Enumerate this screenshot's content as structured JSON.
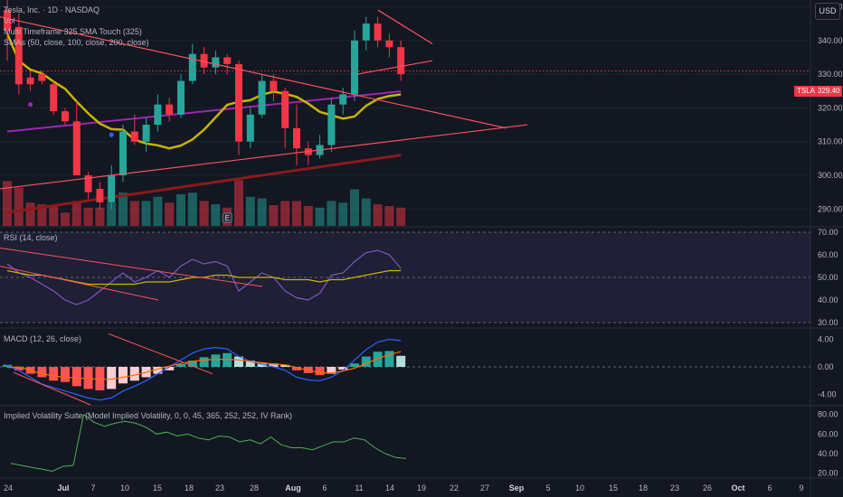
{
  "header": {
    "symbol_line": "Tesla, Inc. · 1D · NASDAQ",
    "vol": "Vol",
    "indicator1": "Multi Timeframe 325 SMA Touch (325)",
    "indicator2": "SMAs (50, close, 100, close, 200, close)"
  },
  "currency_button": "USD",
  "last_price": {
    "symbol": "TSLA",
    "value": "329.40"
  },
  "earnings_marker": "E",
  "panes": {
    "rsi_title": "RSI (14, close)",
    "macd_title": "MACD (12, 26, close)",
    "iv_title": "Implied Volatility Suite (Model Implied Volatility, 0, 0, 45, 365, 252, 252, IV Rank)"
  },
  "colors": {
    "up": "#26a69a",
    "down": "#f23645",
    "background": "#131722",
    "rsi": "#7e57c2",
    "sma50": "#c8b400",
    "sma100": "#9c27b0",
    "sma200": "#8b1a1a",
    "trend": "#f7525f"
  },
  "chart_data": [
    {
      "type": "candlestick",
      "title": "Tesla, Inc. · 1D · NASDAQ",
      "x_ticks": [
        "24",
        "Jul",
        "7",
        "10",
        "15",
        "18",
        "23",
        "28",
        "Aug",
        "6",
        "11",
        "14",
        "19",
        "22",
        "27",
        "Sep",
        "5",
        "10",
        "15",
        "18",
        "23",
        "26",
        "Oct",
        "6",
        "9"
      ],
      "y_ticks": [
        290,
        300,
        310,
        320,
        330,
        340,
        350
      ],
      "ylim": [
        285,
        352
      ],
      "last_price": 329.4,
      "candles": [
        {
          "o": 349,
          "h": 353,
          "l": 334,
          "c": 343,
          "v": 0.54
        },
        {
          "o": 344,
          "h": 348,
          "l": 324,
          "c": 327,
          "v": 0.46
        },
        {
          "o": 329,
          "h": 331,
          "l": 325,
          "c": 327,
          "v": 0.28
        },
        {
          "o": 330,
          "h": 331,
          "l": 327,
          "c": 328,
          "v": 0.26
        },
        {
          "o": 327,
          "h": 328,
          "l": 318,
          "c": 319,
          "v": 0.24
        },
        {
          "o": 319,
          "h": 320,
          "l": 315,
          "c": 316,
          "v": 0.16
        },
        {
          "o": 316,
          "h": 322,
          "l": 300,
          "c": 300,
          "v": 0.3
        },
        {
          "o": 300,
          "h": 301,
          "l": 293,
          "c": 295,
          "v": 0.22
        },
        {
          "o": 296,
          "h": 298,
          "l": 290,
          "c": 292,
          "v": 0.22
        },
        {
          "o": 292,
          "h": 303,
          "l": 290,
          "c": 300,
          "v": 0.28
        },
        {
          "o": 300,
          "h": 315,
          "l": 298,
          "c": 313,
          "v": 0.4
        },
        {
          "o": 313,
          "h": 318,
          "l": 309,
          "c": 310,
          "v": 0.3
        },
        {
          "o": 310,
          "h": 317,
          "l": 307,
          "c": 315,
          "v": 0.3
        },
        {
          "o": 315,
          "h": 324,
          "l": 313,
          "c": 321,
          "v": 0.35
        },
        {
          "o": 321,
          "h": 323,
          "l": 316,
          "c": 318,
          "v": 0.28
        },
        {
          "o": 318,
          "h": 330,
          "l": 317,
          "c": 328,
          "v": 0.38
        },
        {
          "o": 328,
          "h": 339,
          "l": 327,
          "c": 336,
          "v": 0.4
        },
        {
          "o": 336,
          "h": 338,
          "l": 330,
          "c": 332,
          "v": 0.3
        },
        {
          "o": 332,
          "h": 337,
          "l": 330,
          "c": 335,
          "v": 0.26
        },
        {
          "o": 335,
          "h": 336,
          "l": 330,
          "c": 333,
          "v": 0.22
        },
        {
          "o": 333,
          "h": 334,
          "l": 306,
          "c": 310,
          "v": 0.55
        },
        {
          "o": 310,
          "h": 320,
          "l": 308,
          "c": 318,
          "v": 0.35
        },
        {
          "o": 318,
          "h": 330,
          "l": 317,
          "c": 328,
          "v": 0.33
        },
        {
          "o": 328,
          "h": 330,
          "l": 322,
          "c": 325,
          "v": 0.25
        },
        {
          "o": 325,
          "h": 326,
          "l": 308,
          "c": 314,
          "v": 0.3
        },
        {
          "o": 314,
          "h": 321,
          "l": 303,
          "c": 308,
          "v": 0.3
        },
        {
          "o": 308,
          "h": 310,
          "l": 303,
          "c": 306,
          "v": 0.24
        },
        {
          "o": 306,
          "h": 312,
          "l": 305,
          "c": 309,
          "v": 0.22
        },
        {
          "o": 309,
          "h": 323,
          "l": 307,
          "c": 321,
          "v": 0.3
        },
        {
          "o": 321,
          "h": 326,
          "l": 318,
          "c": 324,
          "v": 0.28
        },
        {
          "o": 324,
          "h": 343,
          "l": 322,
          "c": 340,
          "v": 0.44
        },
        {
          "o": 340,
          "h": 347,
          "l": 337,
          "c": 345,
          "v": 0.33
        },
        {
          "o": 345,
          "h": 347,
          "l": 338,
          "c": 340,
          "v": 0.26
        },
        {
          "o": 340,
          "h": 342,
          "l": 335,
          "c": 338,
          "v": 0.24
        },
        {
          "o": 338,
          "h": 340,
          "l": 328,
          "c": 330,
          "v": 0.22
        }
      ]
    },
    {
      "type": "line",
      "title": "RSI (14, close)",
      "y_ticks": [
        30,
        40,
        50,
        60,
        70
      ],
      "ylim": [
        28,
        72
      ],
      "series": [
        {
          "values": [
            56,
            52,
            50,
            47,
            44,
            40,
            38,
            40,
            44,
            48,
            52,
            48,
            50,
            53,
            50,
            55,
            58,
            56,
            57,
            55,
            44,
            48,
            52,
            50,
            44,
            41,
            40,
            43,
            51,
            52,
            57,
            61,
            62,
            60,
            54
          ]
        },
        {
          "values": [
            53,
            52,
            51,
            51,
            50,
            49,
            48,
            47,
            47,
            47,
            47,
            47,
            48,
            48,
            48,
            49,
            50,
            50,
            51,
            51,
            50,
            50,
            50,
            50,
            49,
            49,
            49,
            48,
            49,
            49,
            50,
            51,
            52,
            53,
            53
          ]
        }
      ]
    },
    {
      "type": "bar",
      "title": "MACD (12, 26, close)",
      "y_ticks": [
        -4.0,
        0.0,
        4.0
      ],
      "ylim": [
        -5.5,
        5.5
      ],
      "histogram": [
        0.3,
        -0.5,
        -1.0,
        -1.5,
        -2.0,
        -2.2,
        -2.8,
        -3.2,
        -3.4,
        -3.2,
        -2.4,
        -2.0,
        -1.5,
        -1.0,
        -0.5,
        0.4,
        0.9,
        1.4,
        1.8,
        2.0,
        1.5,
        0.9,
        0.6,
        0.5,
        0.3,
        -0.5,
        -0.9,
        -1.2,
        -1.0,
        -0.4,
        0.5,
        1.5,
        2.2,
        2.3,
        1.6
      ],
      "series": [
        {
          "values": [
            0.2,
            -0.5,
            -1.5,
            -2.5,
            -3.0,
            -3.5,
            -4.0,
            -4.5,
            -4.8,
            -4.5,
            -3.5,
            -2.8,
            -2.0,
            -1.0,
            0.0,
            1.0,
            2.0,
            2.6,
            2.8,
            2.6,
            1.5,
            0.8,
            0.4,
            0.0,
            -0.5,
            -1.5,
            -1.9,
            -2.0,
            -1.5,
            -0.5,
            1.0,
            2.5,
            3.6,
            4.0,
            3.8
          ]
        },
        {
          "values": [
            -0.1,
            0.0,
            -0.5,
            -1.0,
            -1.3,
            -1.5,
            -1.6,
            -1.7,
            -1.8,
            -1.8,
            -1.5,
            -1.2,
            -0.8,
            -0.3,
            0.1,
            0.5,
            0.8,
            1.0,
            1.1,
            1.1,
            1.0,
            0.8,
            0.6,
            0.4,
            0.3,
            -0.1,
            -0.5,
            -0.8,
            -0.9,
            -0.6,
            -0.2,
            0.5,
            1.2,
            1.8,
            2.2
          ]
        }
      ]
    },
    {
      "type": "line",
      "title": "Implied Volatility Suite (Model Implied Volatility, 0, 0, 45, 365, 252, 252, IV Rank)",
      "y_ticks": [
        20.0,
        40.0,
        60.0,
        80.0
      ],
      "ylim": [
        16,
        88
      ],
      "series": [
        {
          "values": [
            30,
            28,
            26,
            24,
            22,
            27,
            28,
            80,
            72,
            68,
            71,
            73,
            71,
            67,
            60,
            62,
            58,
            60,
            56,
            54,
            58,
            57,
            52,
            54,
            50,
            57,
            49,
            46,
            46,
            44,
            48,
            52,
            52,
            56,
            54,
            46,
            40,
            36,
            35
          ]
        }
      ]
    }
  ]
}
